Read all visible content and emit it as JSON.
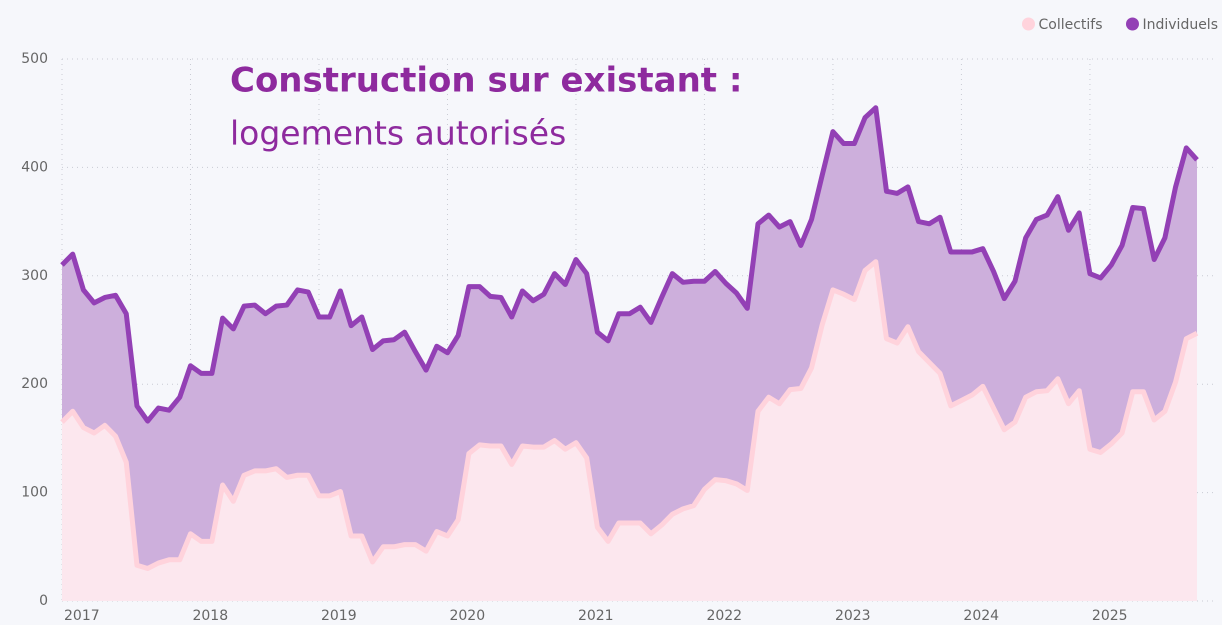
{
  "chart_data": {
    "type": "stacked_area",
    "title": "Construction sur existant :",
    "subtitle": "logements autorisés",
    "categories": [
      "2017",
      null,
      null,
      null,
      null,
      null,
      null,
      null,
      null,
      null,
      null,
      null,
      "2018",
      null,
      null,
      null,
      null,
      null,
      null,
      null,
      null,
      null,
      null,
      null,
      "2019",
      null,
      null,
      null,
      null,
      null,
      null,
      null,
      null,
      null,
      null,
      null,
      "2020",
      null,
      null,
      null,
      null,
      null,
      null,
      null,
      null,
      null,
      null,
      null,
      "2021",
      null,
      null,
      null,
      null,
      null,
      null,
      null,
      null,
      null,
      null,
      null,
      "2022",
      null,
      null,
      null,
      null,
      null,
      null,
      null,
      null,
      null,
      null,
      null,
      "2023",
      null,
      null,
      null,
      null,
      null,
      null,
      null,
      null,
      null,
      null,
      null,
      "2024",
      null,
      null,
      null,
      null,
      null,
      null,
      null,
      null,
      null,
      null,
      null,
      "2025",
      null,
      null,
      null,
      null,
      null,
      null,
      null,
      null,
      null,
      null
    ],
    "series": [
      {
        "name": "Collectifs",
        "color": "#ffd3dc",
        "fill": "#fce7ee",
        "values": [
          165,
          175,
          160,
          155,
          162,
          152,
          128,
          33,
          30,
          35,
          38,
          38,
          62,
          55,
          55,
          107,
          92,
          116,
          120,
          120,
          122,
          114,
          116,
          116,
          97,
          97,
          101,
          60,
          60,
          36,
          50,
          50,
          52,
          52,
          46,
          64,
          60,
          75,
          136,
          144,
          143,
          143,
          126,
          143,
          142,
          142,
          148,
          140,
          146,
          132,
          68,
          55,
          72,
          72,
          72,
          62,
          70,
          80,
          85,
          88,
          103,
          112,
          111,
          108,
          102,
          175,
          188,
          182,
          195,
          196,
          215,
          255,
          287,
          283,
          278,
          305,
          313,
          242,
          238,
          253,
          230,
          220,
          210,
          180,
          185,
          190,
          198,
          178,
          158,
          165,
          188,
          193,
          194,
          205,
          182,
          194,
          140,
          137,
          145,
          155,
          193,
          193,
          167,
          175,
          202,
          242,
          247
        ]
      },
      {
        "name": "Individuels",
        "color": "#9340b5",
        "fill": "#cdafdc",
        "values": [
          145,
          145,
          127,
          120,
          118,
          130,
          137,
          147,
          136,
          143,
          138,
          150,
          155,
          155,
          155,
          154,
          159,
          156,
          153,
          145,
          150,
          159,
          171,
          169,
          165,
          165,
          185,
          194,
          202,
          196,
          190,
          191,
          196,
          178,
          167,
          171,
          169,
          170,
          154,
          146,
          138,
          137,
          136,
          143,
          135,
          141,
          154,
          152,
          169,
          170,
          180,
          185,
          193,
          193,
          199,
          195,
          210,
          222,
          209,
          207,
          192,
          192,
          182,
          176,
          168,
          173,
          168,
          163,
          155,
          132,
          137,
          138,
          146,
          139,
          144,
          141,
          142,
          136,
          138,
          129,
          120,
          128,
          144,
          142,
          137,
          132,
          127,
          126,
          121,
          130,
          147,
          159,
          162,
          168,
          160,
          164,
          162,
          161,
          165,
          173,
          170,
          169,
          148,
          160,
          180,
          176,
          160
        ]
      }
    ],
    "ylim": [
      0,
      500
    ],
    "yticks": [
      0,
      100,
      200,
      300,
      400,
      500
    ],
    "grid": true,
    "legend": "top-right"
  }
}
